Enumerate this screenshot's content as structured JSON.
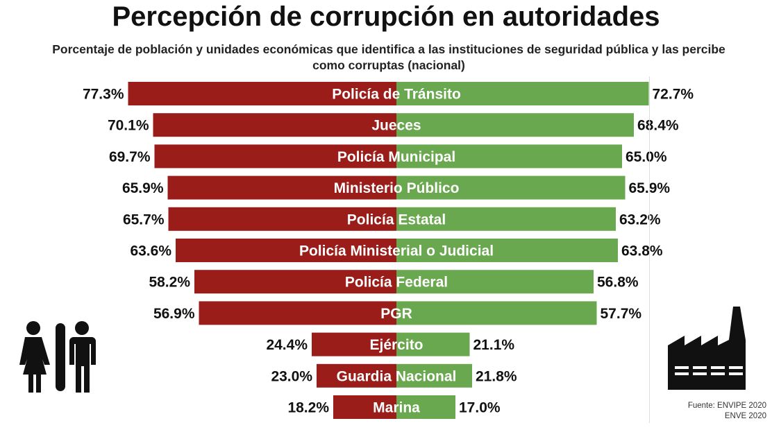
{
  "chart_data": {
    "type": "bar",
    "orientation": "horizontal-diverging",
    "title": "Percepción de corrupción en autoridades",
    "subtitle": "Porcentaje de población y unidades económicas que identifica a las instituciones de seguridad pública y las percibe como corruptas (nacional)",
    "categories": [
      "Policía de Tránsito",
      "Jueces",
      "Policía Municipal",
      "Ministerio Público",
      "Policía Estatal",
      "Policía Ministerial o Judicial",
      "Policía Federal",
      "PGR",
      "Ejército",
      "Guardia Nacional",
      "Marina"
    ],
    "series": [
      {
        "values": [
          77.3,
          70.1,
          69.7,
          65.9,
          65.7,
          63.6,
          58.2,
          56.9,
          24.4,
          23.0,
          18.2
        ],
        "labels": [
          "77.3%",
          "70.1%",
          "69.7%",
          "65.9%",
          "65.7%",
          "63.6%",
          "58.2%",
          "56.9%",
          "24.4%",
          "23.0%",
          "18.2%"
        ],
        "color": "#9b1d1a",
        "side": "left",
        "icon": "people-icon"
      },
      {
        "values": [
          72.7,
          68.4,
          65.0,
          65.9,
          63.2,
          63.8,
          56.8,
          57.7,
          21.1,
          21.8,
          17.0
        ],
        "labels": [
          "72.7%",
          "68.4%",
          "65.0%",
          "65.9%",
          "63.2%",
          "63.8%",
          "56.8%",
          "57.7%",
          "21.1%",
          "21.8%",
          "17.0%"
        ],
        "color": "#6aa84f",
        "side": "right",
        "icon": "factory-icon"
      }
    ],
    "unit": "%",
    "grid": false,
    "legend": "none"
  },
  "source": {
    "line1": "Fuente: ENVIPE 2020",
    "line2": "ENVE 2020"
  }
}
